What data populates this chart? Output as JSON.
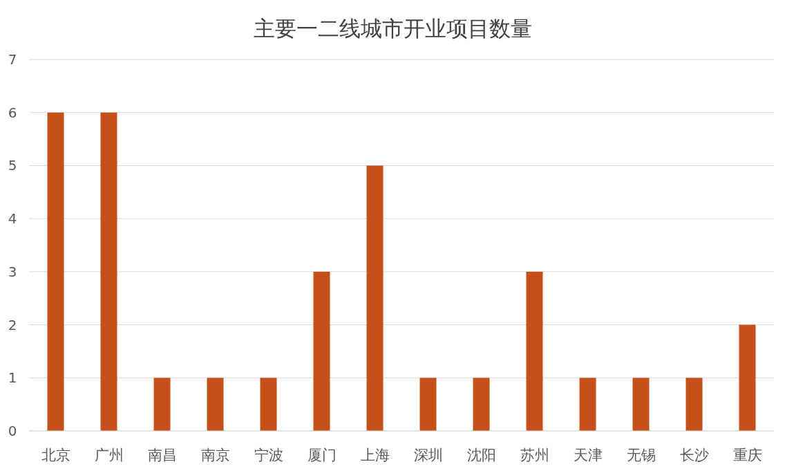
{
  "chart_data": {
    "type": "bar",
    "title": "主要一二线城市开业项目数量",
    "categories": [
      "北京",
      "广州",
      "南昌",
      "南京",
      "宁波",
      "厦门",
      "上海",
      "深圳",
      "沈阳",
      "苏州",
      "天津",
      "无锡",
      "长沙",
      "重庆"
    ],
    "values": [
      6,
      6,
      1,
      1,
      1,
      3,
      5,
      1,
      1,
      3,
      1,
      1,
      1,
      2
    ],
    "color": "#c65019",
    "ylim": [
      0,
      7
    ],
    "yticks": [
      0,
      1,
      2,
      3,
      4,
      5,
      6,
      7
    ],
    "grid": "y"
  }
}
